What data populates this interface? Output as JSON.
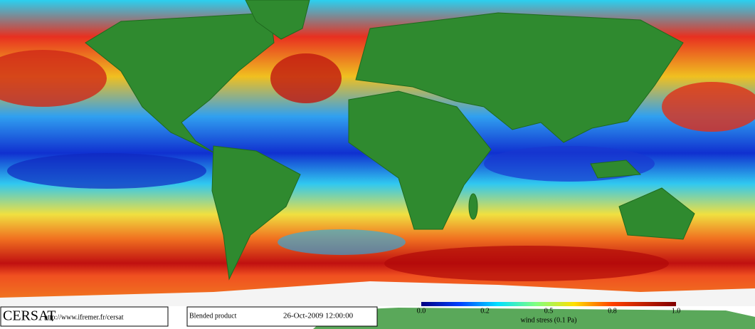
{
  "logo": "CERSAT",
  "url": "http://www.ifremer.fr/cersat",
  "product": "Blended product",
  "date": "26-Oct-2009 12:00:00",
  "colorbar": {
    "ticks": [
      "0.0",
      "0.2",
      "0.5",
      "0.8",
      "1.0"
    ],
    "label": "wind stress (0.1 Pa)"
  }
}
